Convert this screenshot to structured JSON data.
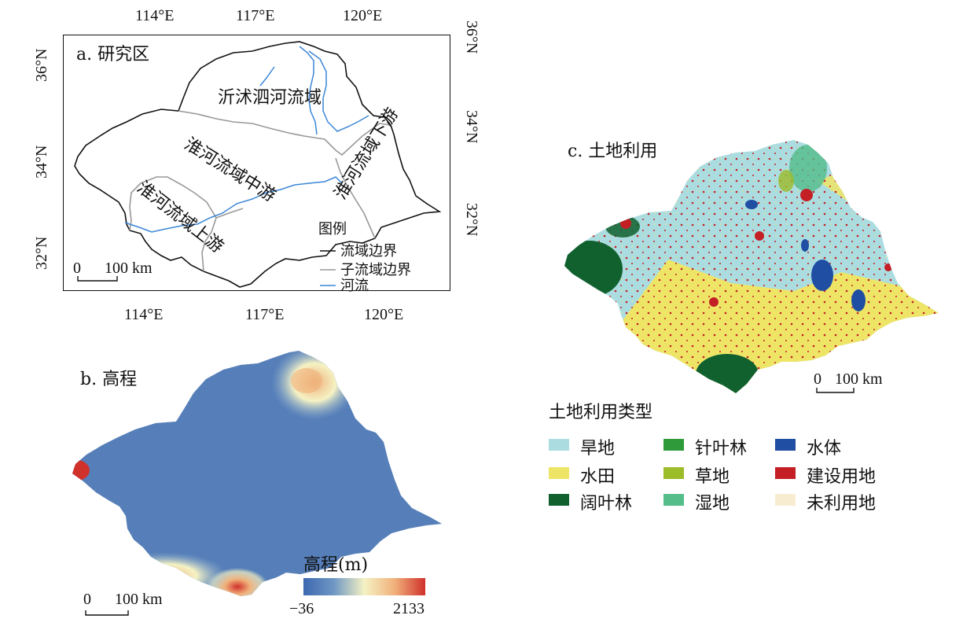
{
  "panel_a": {
    "title": "a. 研究区",
    "top_ticks": [
      "114°E",
      "117°E",
      "120°E"
    ],
    "bottom_ticks": [
      "114°E",
      "117°E",
      "120°E"
    ],
    "left_ticks": [
      "36°N",
      "34°N",
      "32°N"
    ],
    "right_ticks": [
      "36°N",
      "34°N",
      "32°N"
    ],
    "regions": {
      "yishusi": "沂沭泗河流域",
      "middle": "淮河流域中游",
      "upper": "淮河流域上游",
      "lower": "淮河流域下游"
    },
    "legend": {
      "title": "图例",
      "items": [
        {
          "label": "流域边界",
          "color": "#111111"
        },
        {
          "label": "子流域边界",
          "color": "#999999"
        },
        {
          "label": "河流",
          "color": "#3b86d6"
        }
      ]
    },
    "scale": {
      "zero": "0",
      "dist": "100 km"
    }
  },
  "panel_b": {
    "title": "b. 高程",
    "colorbar_title": "高程(m)",
    "min_label": "−36",
    "max_label": "2133",
    "colors": [
      "#3d68b0",
      "#6f97c4",
      "#f5f2c4",
      "#f0b07a",
      "#d0312b"
    ],
    "scale": {
      "zero": "0",
      "dist": "100 km"
    }
  },
  "panel_c": {
    "title": "c. 土地利用",
    "scale": {
      "zero": "0",
      "dist": "100 km"
    },
    "legend_title": "土地利用类型",
    "legend": [
      {
        "label": "旱地",
        "color": "#abdde0"
      },
      {
        "label": "水田",
        "color": "#eee566"
      },
      {
        "label": "阔叶林",
        "color": "#11612f"
      },
      {
        "label": "针叶林",
        "color": "#2f9a3a"
      },
      {
        "label": "草地",
        "color": "#9cbc2a"
      },
      {
        "label": "湿地",
        "color": "#54bd8a"
      },
      {
        "label": "水体",
        "color": "#1f4ea3"
      },
      {
        "label": "建设用地",
        "color": "#c31f25"
      },
      {
        "label": "未利用地",
        "color": "#f8ecd0"
      }
    ]
  }
}
